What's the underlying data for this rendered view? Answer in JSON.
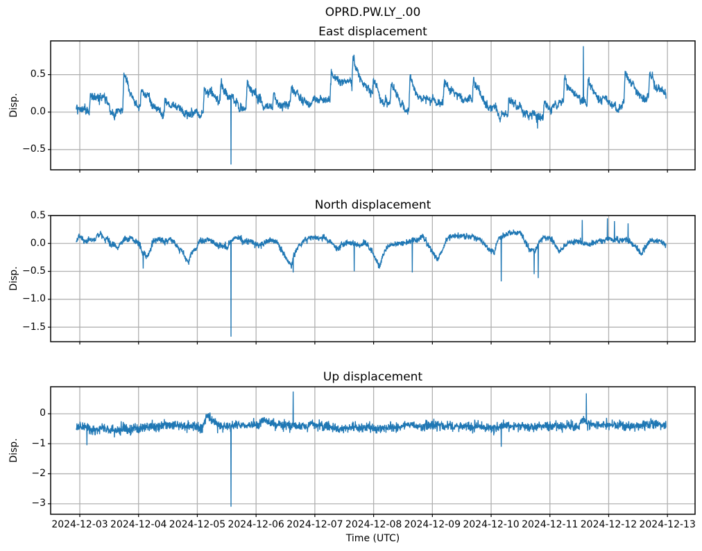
{
  "figure": {
    "title": "OPRD.PW.LY_.00",
    "xlabel": "Time (UTC)",
    "background_color": "#ffffff",
    "line_color": "#1f77b4",
    "grid_color": "#b0b0b0",
    "axis_color": "#000000",
    "grid_on": true,
    "legend": "none"
  },
  "x_axis": {
    "tick_labels": [
      "2024-12-03",
      "2024-12-04",
      "2024-12-05",
      "2024-12-06",
      "2024-12-07",
      "2024-12-08",
      "2024-12-09",
      "2024-12-10",
      "2024-12-11",
      "2024-12-12",
      "2024-12-13"
    ],
    "tick_days": [
      0,
      1,
      2,
      3,
      4,
      5,
      6,
      7,
      8,
      9,
      10
    ],
    "xlim_days": [
      -0.496,
      10.47
    ]
  },
  "chart_data": [
    {
      "type": "line",
      "name": "east",
      "title": "East displacement",
      "ylabel": "Disp.",
      "ytick_labels": [
        "0.5",
        "0.0",
        "−0.5"
      ],
      "ytick_values": [
        0.5,
        0.0,
        -0.5
      ],
      "ylim": [
        -0.77,
        0.95
      ],
      "summary": "Noisy trace around 0.0–0.2 with daily sawtooth peaks near 0.3–0.6; sharp dip to −0.7 on 2024-12-05 ~14:00 and tall spike to ~0.9 on 2024-12-11 ~14:00.",
      "series": {
        "seed": 101,
        "n_points": 2600,
        "t_start": -0.06,
        "t_end": 9.975,
        "level": 0.05,
        "noise": 0.025,
        "walk": 0.012,
        "walk_decay": 0.99,
        "events": [
          {
            "day": 0.18,
            "amp": 0.28,
            "onset": 0.02,
            "decay": 0.22
          },
          {
            "day": 0.75,
            "amp": 0.52,
            "onset": 0.02,
            "decay": 0.22
          },
          {
            "day": 1.05,
            "amp": 0.2,
            "onset": 0.02,
            "decay": 0.22
          },
          {
            "day": 1.45,
            "amp": 0.18,
            "onset": 0.02,
            "decay": 0.22
          },
          {
            "day": 2.12,
            "amp": 0.3,
            "onset": 0.02,
            "decay": 0.22
          },
          {
            "day": 2.4,
            "amp": 0.18,
            "onset": 0.02,
            "decay": 0.22
          },
          {
            "day": 2.85,
            "amp": 0.38,
            "onset": 0.02,
            "decay": 0.22
          },
          {
            "day": 3.3,
            "amp": 0.2,
            "onset": 0.02,
            "decay": 0.22
          },
          {
            "day": 3.6,
            "amp": 0.28,
            "onset": 0.02,
            "decay": 0.22
          },
          {
            "day": 4.28,
            "amp": 0.4,
            "onset": 0.02,
            "decay": 0.22
          },
          {
            "day": 4.65,
            "amp": 0.45,
            "onset": 0.02,
            "decay": 0.22
          },
          {
            "day": 5.0,
            "amp": 0.2,
            "onset": 0.02,
            "decay": 0.22
          },
          {
            "day": 5.3,
            "amp": 0.3,
            "onset": 0.02,
            "decay": 0.22
          },
          {
            "day": 5.62,
            "amp": 0.45,
            "onset": 0.02,
            "decay": 0.22
          },
          {
            "day": 6.2,
            "amp": 0.28,
            "onset": 0.02,
            "decay": 0.22
          },
          {
            "day": 6.7,
            "amp": 0.3,
            "onset": 0.02,
            "decay": 0.22
          },
          {
            "day": 7.3,
            "amp": 0.22,
            "onset": 0.02,
            "decay": 0.22
          },
          {
            "day": 7.9,
            "amp": 0.25,
            "onset": 0.02,
            "decay": 0.22
          },
          {
            "day": 8.25,
            "amp": 0.38,
            "onset": 0.02,
            "decay": 0.22
          },
          {
            "day": 8.65,
            "amp": 0.35,
            "onset": 0.02,
            "decay": 0.22
          },
          {
            "day": 9.28,
            "amp": 0.42,
            "onset": 0.02,
            "decay": 0.22
          },
          {
            "day": 9.7,
            "amp": 0.35,
            "onset": 0.02,
            "decay": 0.22
          }
        ],
        "spikes": [
          {
            "day": 2.575,
            "value": -0.7
          },
          {
            "day": 7.79,
            "value": -0.22
          },
          {
            "day": 8.57,
            "value": 0.88
          }
        ]
      }
    },
    {
      "type": "line",
      "name": "north",
      "title": "North displacement",
      "ylabel": "Disp.",
      "ytick_labels": [
        "0.5",
        "0.0",
        "−0.5",
        "−1.0",
        "−1.5"
      ],
      "ytick_values": [
        0.5,
        0.0,
        -0.5,
        -1.0,
        -1.5
      ],
      "ylim": [
        -1.76,
        0.5
      ],
      "summary": "Trace fluctuating around 0.0 with recurring gradual dips to about −0.35, thin downward spikes to about −0.5, a large spike to −1.67 on 2024-12-05 ~14:00, and small upward spikes to ~0.4 on 2024-12-11/12.",
      "series": {
        "seed": 202,
        "n_points": 2600,
        "t_start": -0.06,
        "t_end": 9.975,
        "level": 0.05,
        "noise": 0.025,
        "walk": 0.008,
        "walk_decay": 0.99,
        "events": [
          {
            "day": 0.65,
            "amp": -0.22,
            "onset": 0.25,
            "decay": 0.08
          },
          {
            "day": 1.15,
            "amp": -0.3,
            "onset": 0.25,
            "decay": 0.08
          },
          {
            "day": 1.85,
            "amp": -0.38,
            "onset": 0.25,
            "decay": 0.08
          },
          {
            "day": 2.5,
            "amp": -0.22,
            "onset": 0.25,
            "decay": 0.08
          },
          {
            "day": 3.6,
            "amp": -0.42,
            "onset": 0.25,
            "decay": 0.08
          },
          {
            "day": 4.4,
            "amp": -0.22,
            "onset": 0.25,
            "decay": 0.08
          },
          {
            "day": 5.1,
            "amp": -0.45,
            "onset": 0.25,
            "decay": 0.08
          },
          {
            "day": 6.1,
            "amp": -0.38,
            "onset": 0.25,
            "decay": 0.08
          },
          {
            "day": 7.05,
            "amp": -0.3,
            "onset": 0.25,
            "decay": 0.08
          },
          {
            "day": 7.75,
            "amp": -0.3,
            "onset": 0.25,
            "decay": 0.08
          },
          {
            "day": 8.2,
            "amp": -0.22,
            "onset": 0.25,
            "decay": 0.08
          },
          {
            "day": 9.55,
            "amp": -0.25,
            "onset": 0.25,
            "decay": 0.08
          }
        ],
        "spikes": [
          {
            "day": 1.08,
            "value": -0.45
          },
          {
            "day": 2.575,
            "value": -1.67
          },
          {
            "day": 3.63,
            "value": -0.52
          },
          {
            "day": 4.67,
            "value": -0.5
          },
          {
            "day": 5.66,
            "value": -0.52
          },
          {
            "day": 7.17,
            "value": -0.68
          },
          {
            "day": 7.73,
            "value": -0.55
          },
          {
            "day": 7.8,
            "value": -0.62
          },
          {
            "day": 8.55,
            "value": 0.42
          },
          {
            "day": 8.98,
            "value": 0.45
          },
          {
            "day": 9.1,
            "value": 0.4
          },
          {
            "day": 9.33,
            "value": 0.36
          }
        ]
      }
    },
    {
      "type": "line",
      "name": "up",
      "title": "Up displacement",
      "ylabel": "Disp.",
      "ytick_labels": [
        "0",
        "−1",
        "−2",
        "−3"
      ],
      "ytick_values": [
        0,
        -1,
        -2,
        -3
      ],
      "ylim": [
        -3.35,
        0.9
      ],
      "summary": "Noisy trace around −0.4 (range −0.8 to 0), large downward spike to −3.1 on 2024-12-05 ~14:00, upward spikes to ~0.7 on 2024-12-06 and 2024-12-11, downward spikes to ~−1.1 on 2024-12-03 and 2024-12-10.",
      "series": {
        "seed": 303,
        "n_points": 2600,
        "t_start": -0.06,
        "t_end": 9.975,
        "level": -0.42,
        "noise": 0.08,
        "walk": 0.008,
        "walk_decay": 0.99,
        "events": [
          {
            "day": 2.15,
            "amp": 0.35,
            "onset": 0.05,
            "decay": 0.1
          },
          {
            "day": 3.1,
            "amp": 0.2,
            "onset": 0.05,
            "decay": 0.1
          },
          {
            "day": 8.55,
            "amp": 0.3,
            "onset": 0.05,
            "decay": 0.1
          }
        ],
        "spikes": [
          {
            "day": 0.12,
            "value": -1.05
          },
          {
            "day": 2.575,
            "value": -3.1
          },
          {
            "day": 3.63,
            "value": 0.74
          },
          {
            "day": 7.17,
            "value": -1.1
          },
          {
            "day": 8.62,
            "value": 0.68
          }
        ]
      }
    }
  ]
}
